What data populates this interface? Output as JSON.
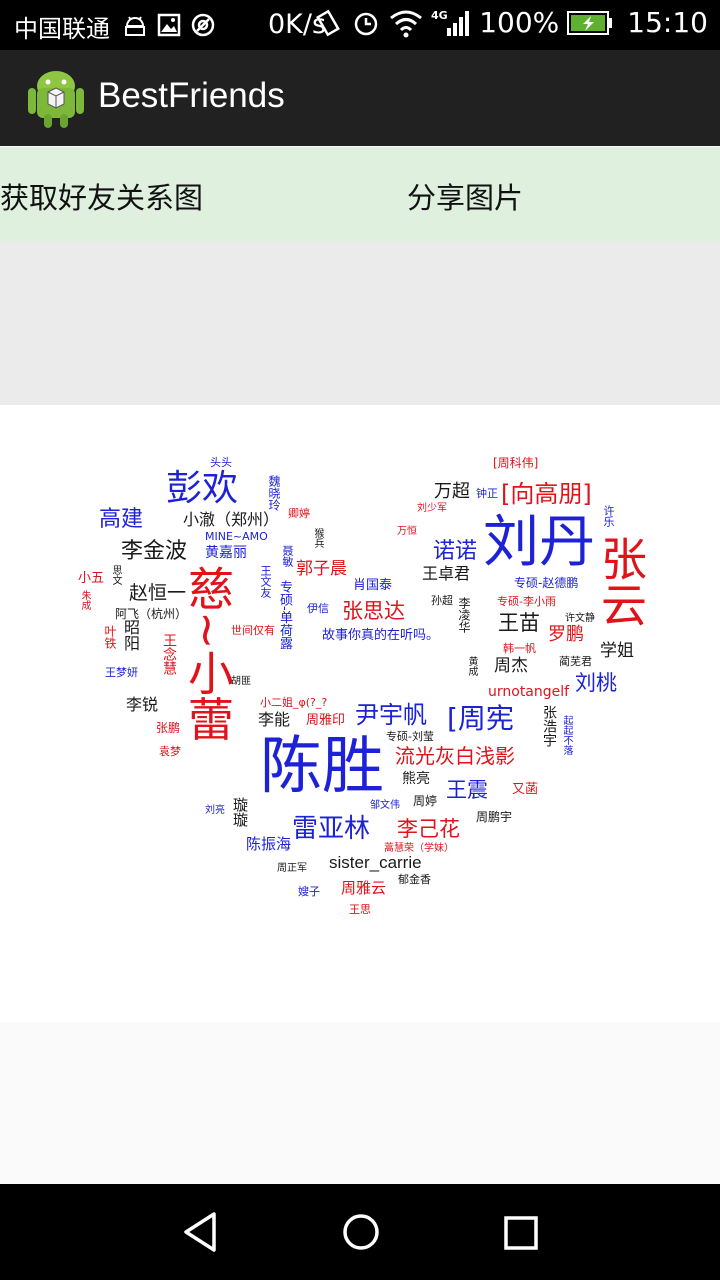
{
  "status_bar": {
    "carrier": "中国联通",
    "speed": "0K/s",
    "network": "4G",
    "battery": "100%",
    "time": "15:10"
  },
  "app": {
    "title": "BestFriends",
    "icon": "android-app-icon"
  },
  "toolbar": {
    "get_graph_label": "获取好友关系图",
    "share_label": "分享图片"
  },
  "word_cloud": {
    "words": [
      "头头",
      "[周科伟]",
      "彭欢",
      "魏晓玲",
      "万超",
      "钟正",
      "[向高朋]",
      "高建",
      "小澈（郑州）",
      "卿婷",
      "刘少军",
      "许乐",
      "MINE~AMO",
      "万恒",
      "刘丹",
      "李金波",
      "黄嘉丽",
      "猴兵",
      "小五",
      "思文",
      "诺诺",
      "张云",
      "朱成",
      "赵恒一",
      "聂敏",
      "郭子晨",
      "肖国泰",
      "王卓君",
      "专硕-赵德鹏",
      "阿飞（杭州）",
      "王文友",
      "专硕-单荷露",
      "孙超",
      "李凌华",
      "专硕-李小雨",
      "叶铁",
      "昭阳",
      "张思达",
      "王苗",
      "许文静",
      "王梦妍",
      "世间仅有",
      "伊信",
      "故事你真的在听吗。",
      "罗鹏",
      "学姐",
      "王念慧",
      "慈~小蕾",
      "韩一帆",
      "蔺芜君",
      "黄成",
      "周杰",
      "胡匪",
      "刘桃",
      "urnotangelf",
      "李锐",
      "小二姐_φ(?_?",
      "尹宇帆",
      "[周宪",
      "张浩宇",
      "起起不落",
      "李能",
      "周雅印",
      "专硕-刘莹",
      "张鹏",
      "陈胜",
      "流光灰白浅影",
      "袁梦",
      "熊亮",
      "又菡",
      "王震",
      "刘亮",
      "璇璇",
      "邹文伟",
      "周婷",
      "周鹏宇",
      "雷亚林",
      "李己花",
      "陈振海",
      "蒿慧荣（学妹）",
      "sister_carrie",
      "周正军",
      "郁金香",
      "嫂子",
      "周雅云",
      "王思"
    ]
  },
  "nav_bar": {
    "back": "back-icon",
    "home": "home-icon",
    "recent": "recent-apps-icon"
  }
}
